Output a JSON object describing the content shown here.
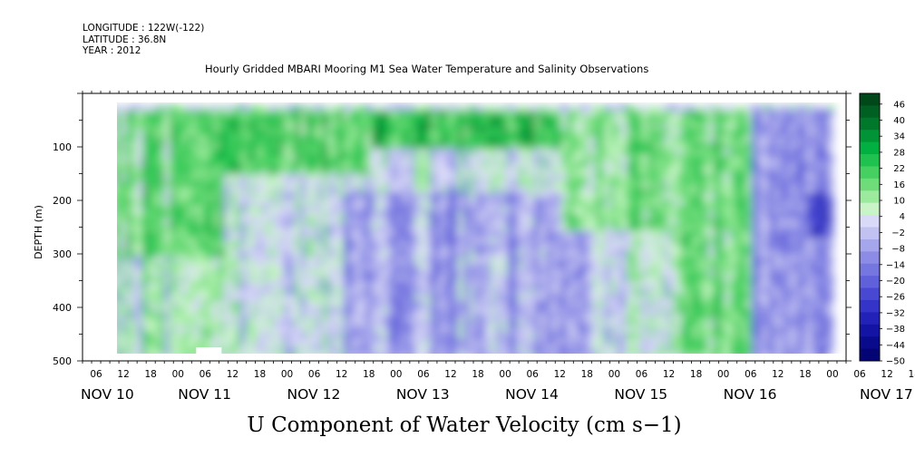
{
  "header": {
    "longitude": "LONGITUDE : 122W(-122)",
    "latitude": "LATITUDE : 36.8N",
    "year": "YEAR : 2012"
  },
  "chart_data": {
    "type": "heatmap",
    "title": "Hourly Gridded MBARI Mooring M1 Sea Water Temperature and Salinity Observations",
    "xlabel": "U Component of Water Velocity (cm s−1)",
    "ylabel": "DEPTH (m)",
    "ylim": [
      500,
      0
    ],
    "y_ticks": [
      "100",
      "200",
      "300",
      "400",
      "500"
    ],
    "x_hour_ticks": [
      "06",
      "12",
      "18",
      "00",
      "06",
      "12",
      "18",
      "00",
      "06",
      "12",
      "18",
      "00",
      "06",
      "12",
      "18",
      "00",
      "06",
      "12",
      "18",
      "00",
      "06",
      "12",
      "18",
      "00",
      "06",
      "12",
      "18",
      "00",
      "06",
      "12",
      "18",
      "00"
    ],
    "x_day_labels": [
      "NOV 10",
      "NOV 11",
      "NOV 12",
      "NOV 13",
      "NOV 14",
      "NOV 15",
      "NOV 16",
      "NOV 17"
    ],
    "x_range": [
      "2012-11-10T03:00",
      "2012-11-17T03:00"
    ],
    "data_extent": {
      "start": "2012-11-10T09:00",
      "end": "2012-11-17T00:00",
      "depth_min": 20,
      "depth_max": 490
    },
    "colorbar": {
      "labels": [
        "46",
        "40",
        "34",
        "28",
        "22",
        "16",
        "10",
        "4",
        "−2",
        "−8",
        "−14",
        "−20",
        "−26",
        "−32",
        "−38",
        "−44",
        "−50"
      ],
      "range": [
        -50,
        50
      ],
      "colors_high_to_low": [
        "#00481a",
        "#005f22",
        "#00782c",
        "#009436",
        "#00b040",
        "#1fc24f",
        "#46d062",
        "#6fdc7a",
        "#9cea9e",
        "#c8f4c8",
        "#d9d9f8",
        "#c2c2f2",
        "#a6a6ec",
        "#8c8ce6",
        "#7676e0",
        "#6060da",
        "#4848d2",
        "#3434c8",
        "#2222b8",
        "#1414a4",
        "#0a0a8c",
        "#040474"
      ]
    },
    "bands": [
      {
        "t0": "11-10T09",
        "t1": "11-11T09",
        "value": 16,
        "depth": [
          20,
          300
        ]
      },
      {
        "t0": "11-10T09",
        "t1": "11-11T09",
        "value": 6,
        "depth": [
          300,
          490
        ]
      },
      {
        "t0": "11-11T09",
        "t1": "11-12T18",
        "value": 20,
        "depth": [
          20,
          150
        ]
      },
      {
        "t0": "11-12T18",
        "t1": "11-14T12",
        "value": 24,
        "depth": [
          20,
          100
        ]
      },
      {
        "t0": "11-12T12",
        "t1": "11-14T18",
        "value": -8,
        "depth": [
          180,
          490
        ]
      },
      {
        "t0": "11-14T12",
        "t1": "11-15T12",
        "value": 14,
        "depth": [
          20,
          250
        ]
      },
      {
        "t0": "11-15T12",
        "t1": "11-16T06",
        "value": 18,
        "depth": [
          20,
          490
        ]
      },
      {
        "t0": "11-16T06",
        "t1": "11-17T00",
        "value": -12,
        "depth": [
          20,
          490
        ]
      },
      {
        "t0": "11-16T18",
        "t1": "11-17T00",
        "value": -26,
        "depth": [
          180,
          260
        ]
      }
    ]
  }
}
